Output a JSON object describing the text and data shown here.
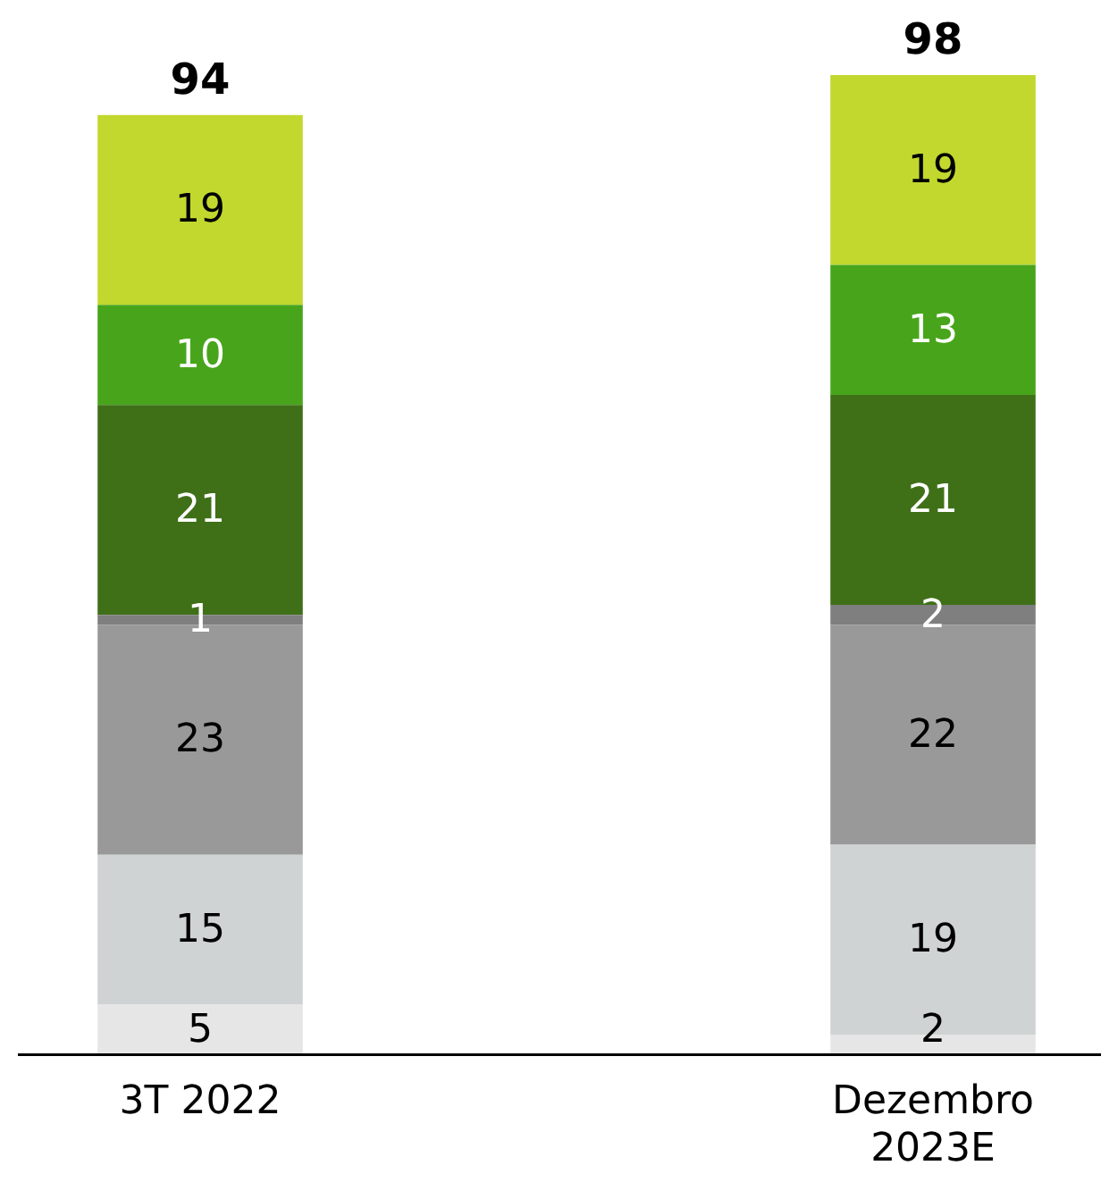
{
  "chart_data": {
    "type": "bar",
    "stacked": true,
    "data_labels": true,
    "legend": false,
    "ylim": [
      0,
      98
    ],
    "categories": [
      "3T 2022",
      "Dezembro 2023E"
    ],
    "series": [
      {
        "color": "#e6e6e6",
        "values": [
          5,
          2
        ]
      },
      {
        "color": "#d0d3d4",
        "values": [
          15,
          19
        ]
      },
      {
        "color": "#999999",
        "values": [
          23,
          22
        ]
      },
      {
        "color": "#7f7f7f",
        "values": [
          1,
          2
        ]
      },
      {
        "color": "#3f7018",
        "values": [
          21,
          21
        ]
      },
      {
        "color": "#48a51b",
        "values": [
          10,
          13
        ]
      },
      {
        "color": "#c2d82e",
        "values": [
          19,
          19
        ]
      }
    ],
    "totals": [
      "94",
      "98"
    ]
  }
}
